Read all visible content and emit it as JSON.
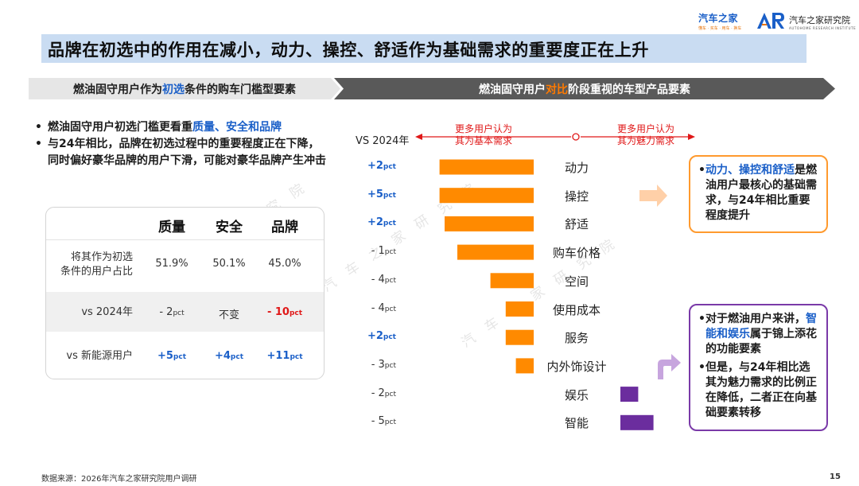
{
  "header": {
    "logo1_title": "汽车之家",
    "logo1_sub": "懂车 · 买车 · 用车 · 换车",
    "logo2_mark": "AR",
    "logo2_title": "汽车之家研究院",
    "logo2_sub": "AUTOHOME RESEARCH INSTITUTE"
  },
  "title": "品牌在初选中的作用在减小，动力、操控、舒适作为基础需求的重要度正在上升",
  "left_banner": {
    "pre": "燃油固守用户作为",
    "hl": "初选",
    "post": "条件的购车门槛型要素"
  },
  "right_banner": {
    "pre": "燃油固守用户",
    "hl": "对比",
    "post": "阶段重视的车型产品要素"
  },
  "bullets": [
    {
      "pre": "燃油固守用户初选门槛更看重",
      "hl": "质量、安全和品牌",
      "post": ""
    },
    {
      "pre": "与24年相比，品牌在初选过程中的重要程度正在下降，同时偏好豪华品牌的用户下滑，可能对豪华品牌产生冲击",
      "hl": "",
      "post": ""
    }
  ],
  "table": {
    "headers": [
      "质量",
      "安全",
      "品牌"
    ],
    "rows": [
      {
        "label_line1": "将其作为初选",
        "label_line2": "条件的用户占比",
        "cells": [
          "51.9%",
          "50.1%",
          "45.0%"
        ]
      },
      {
        "label": "vs 2024年",
        "cells": [
          {
            "main": "- 2",
            "unit": "pct"
          },
          {
            "main": "不变",
            "unit": ""
          },
          {
            "main": "- 10",
            "unit": "pct"
          }
        ]
      },
      {
        "label": "vs 新能源用户",
        "cells": [
          {
            "main": "+5",
            "unit": "pct"
          },
          {
            "main": "+4",
            "unit": "pct"
          },
          {
            "main": "+11",
            "unit": "pct"
          }
        ]
      }
    ]
  },
  "chart_data": {
    "type": "bar",
    "orientation": "horizontal-diverging",
    "x_label": "VS 2024年",
    "axis_left_label": [
      "更多用户认为",
      "其为基本需求"
    ],
    "axis_right_label": [
      "更多用户认为",
      "其为魅力需求"
    ],
    "categories": [
      "动力",
      "操控",
      "舒适",
      "购车价格",
      "空间",
      "使用成本",
      "服务",
      "内外饰设计",
      "娱乐",
      "智能"
    ],
    "deltas": [
      {
        "main": "+2",
        "unit": "pct"
      },
      {
        "main": "+5",
        "unit": "pct"
      },
      {
        "main": "+2",
        "unit": "pct"
      },
      {
        "main": "- 1",
        "unit": "pct"
      },
      {
        "main": "- 4",
        "unit": "pct"
      },
      {
        "main": "- 4",
        "unit": "pct"
      },
      {
        "main": "+2",
        "unit": "pct"
      },
      {
        "main": "- 3",
        "unit": "pct"
      },
      {
        "main": "- 2",
        "unit": "pct"
      },
      {
        "main": "- 5",
        "unit": "pct"
      }
    ],
    "values": [
      -3.7,
      -3.7,
      -3.5,
      -3.0,
      -1.7,
      -1.1,
      -1.1,
      -0.7,
      0.7,
      1.3
    ],
    "colors": {
      "basic": "#ff8a00",
      "attractive": "#6b2d9e"
    }
  },
  "callout_basic": [
    {
      "hl": "动力、操控和舒适",
      "post": "是燃油用户最核心的基础需求，与24年相比重要程度提升"
    }
  ],
  "callout_attractive": [
    {
      "pre": "对于燃油用户来讲，",
      "hl": "智能和娱乐",
      "post": "属于锦上添花的功能要素"
    },
    {
      "pre": "但是，与24年相比选其为魅力需求的比例正在降低，二者正在向基础要素转移",
      "hl": "",
      "post": ""
    }
  ],
  "watermark": "汽车之家研究院",
  "footer": "数据来源：2026年汽车之家研究院用户调研",
  "page_number": "15",
  "colors": {
    "title_bg": "#c9dcf2",
    "accent_blue": "#1a5fc8",
    "accent_orange": "#ff7a00",
    "accent_red": "#e01818",
    "accent_purple": "#6b2d9e"
  }
}
